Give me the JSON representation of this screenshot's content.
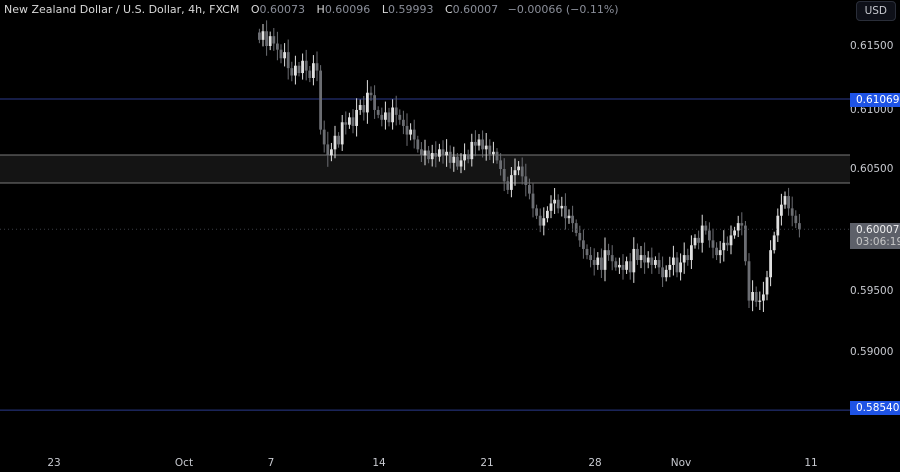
{
  "header": {
    "title": "New Zealand Dollar / U.S. Dollar, 4h, FXCM",
    "o_label": "O",
    "o": "0.60073",
    "h_label": "H",
    "h": "0.60096",
    "l_label": "L",
    "l": "0.59993",
    "c_label": "C",
    "c": "0.60007",
    "change": "−0.00066 (−0.11%)"
  },
  "currency_button": "USD",
  "colors": {
    "background": "#000000",
    "up": "#e0e0e0",
    "down": "#6b6d72",
    "level_line": "#2b3a8c",
    "level_tag": "#1e53e5",
    "zone": "#141414",
    "zone_border": "#7a7a7a",
    "price_tag": "#5d6069"
  },
  "chart_data": {
    "type": "candlestick",
    "interval": "4h",
    "y_ticks": [
      "0.61500",
      "0.61000",
      "0.60500",
      "0.59500",
      "0.59000"
    ],
    "ylim": [
      0.5835,
      0.6171
    ],
    "x_ticks": [
      "23",
      "Oct",
      "7",
      "14",
      "21",
      "28",
      "Nov",
      "11"
    ],
    "grid": false,
    "closes": [
      0.6155,
      0.6162,
      0.615,
      0.6158,
      0.6152,
      0.6147,
      0.614,
      0.6145,
      0.6132,
      0.6126,
      0.6134,
      0.6128,
      0.6138,
      0.613,
      0.6124,
      0.6136,
      0.613,
      0.6082,
      0.607,
      0.6061,
      0.6066,
      0.6077,
      0.607,
      0.6088,
      0.6086,
      0.6092,
      0.6085,
      0.6098,
      0.6102,
      0.6096,
      0.6112,
      0.611,
      0.6098,
      0.6094,
      0.609,
      0.6096,
      0.6088,
      0.61,
      0.6094,
      0.609,
      0.6085,
      0.6078,
      0.6082,
      0.6074,
      0.6066,
      0.6061,
      0.6065,
      0.6058,
      0.6063,
      0.606,
      0.6066,
      0.6061,
      0.6064,
      0.6055,
      0.606,
      0.6052,
      0.6057,
      0.6062,
      0.6058,
      0.6072,
      0.6069,
      0.6074,
      0.6066,
      0.6069,
      0.6062,
      0.6064,
      0.6057,
      0.605,
      0.604,
      0.6033,
      0.6045,
      0.6049,
      0.6052,
      0.6044,
      0.6037,
      0.603,
      0.6018,
      0.6012,
      0.6004,
      0.601,
      0.6016,
      0.6022,
      0.6025,
      0.6018,
      0.602,
      0.601,
      0.6012,
      0.6006,
      0.5998,
      0.5992,
      0.5985,
      0.598,
      0.5976,
      0.5972,
      0.5978,
      0.5968,
      0.5984,
      0.598,
      0.5975,
      0.597,
      0.5972,
      0.5968,
      0.5975,
      0.5966,
      0.5985,
      0.5976,
      0.598,
      0.5974,
      0.5978,
      0.5972,
      0.5976,
      0.597,
      0.5962,
      0.5968,
      0.5972,
      0.5978,
      0.5966,
      0.5974,
      0.598,
      0.5976,
      0.5988,
      0.5994,
      0.599,
      0.6004,
      0.6,
      0.5992,
      0.5986,
      0.598,
      0.5984,
      0.599,
      0.5988,
      0.5996,
      0.6,
      0.6006,
      0.6004,
      0.5975,
      0.5943,
      0.595,
      0.5942,
      0.5943,
      0.5948,
      0.5962,
      0.5984,
      0.5996,
      0.6012,
      0.6021,
      0.6028,
      0.6018,
      0.6012,
      0.6006,
      0.6001
    ],
    "levels": [
      {
        "price": 0.61069,
        "label": "0.61069"
      },
      {
        "price": 0.5854,
        "label": "0.58540"
      }
    ],
    "zone": [
      0.60386,
      0.60614
    ],
    "last_price": {
      "label": "0.60007",
      "countdown": "03:06:19"
    }
  }
}
